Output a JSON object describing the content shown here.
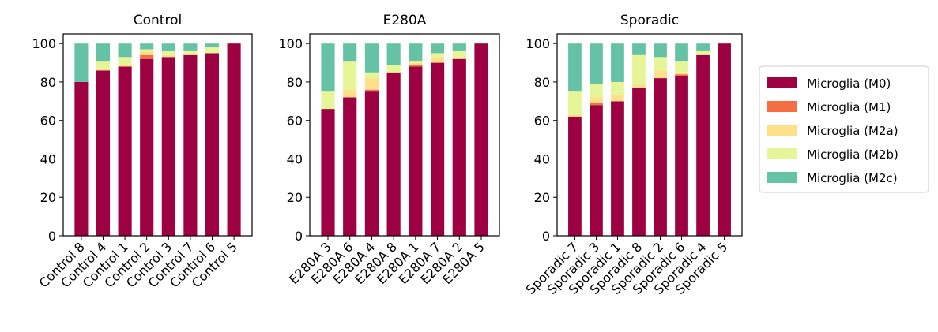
{
  "chart_data": [
    {
      "type": "bar",
      "stacked": true,
      "title": "Control",
      "ylim": [
        0,
        105
      ],
      "yticks": [
        0,
        20,
        40,
        60,
        80,
        100
      ],
      "categories": [
        "Control 8",
        "Control 4",
        "Control 1",
        "Control 2",
        "Control 3",
        "Control 7",
        "Control 6",
        "Control 5"
      ],
      "series": [
        {
          "name": "Microglia (M0)",
          "values": [
            80,
            86,
            88,
            92,
            93,
            94,
            95,
            100
          ]
        },
        {
          "name": "Microglia (M1)",
          "values": [
            0,
            0,
            0,
            2,
            0,
            0,
            0,
            0
          ]
        },
        {
          "name": "Microglia (M2a)",
          "values": [
            0,
            1,
            1,
            2,
            1,
            1,
            0,
            0
          ]
        },
        {
          "name": "Microglia (M2b)",
          "values": [
            0,
            4,
            4,
            1,
            2,
            1,
            3,
            0
          ]
        },
        {
          "name": "Microglia (M2c)",
          "values": [
            20,
            9,
            7,
            3,
            4,
            4,
            2,
            0
          ]
        }
      ]
    },
    {
      "type": "bar",
      "stacked": true,
      "title": "E280A",
      "ylim": [
        0,
        105
      ],
      "yticks": [
        0,
        20,
        40,
        60,
        80,
        100
      ],
      "categories": [
        "E280A 3",
        "E280A 6",
        "E280A 4",
        "E280A 8",
        "E280A 1",
        "E280A 7",
        "E280A 2",
        "E280A 5"
      ],
      "series": [
        {
          "name": "Microglia (M0)",
          "values": [
            66,
            72,
            75,
            85,
            88,
            90,
            92,
            100
          ]
        },
        {
          "name": "Microglia (M1)",
          "values": [
            0,
            0,
            1,
            0,
            1,
            0,
            0,
            0
          ]
        },
        {
          "name": "Microglia (M2a)",
          "values": [
            0,
            4,
            6,
            0,
            1,
            3,
            0,
            0
          ]
        },
        {
          "name": "Microglia (M2b)",
          "values": [
            9,
            15,
            3,
            4,
            1,
            2,
            4,
            0
          ]
        },
        {
          "name": "Microglia (M2c)",
          "values": [
            25,
            9,
            15,
            11,
            9,
            5,
            4,
            0
          ]
        }
      ]
    },
    {
      "type": "bar",
      "stacked": true,
      "title": "Sporadic",
      "ylim": [
        0,
        105
      ],
      "yticks": [
        0,
        20,
        40,
        60,
        80,
        100
      ],
      "categories": [
        "Sporadic 7",
        "Sporadic 3",
        "Sporadic 1",
        "Sporadic 8",
        "Sporadic 2",
        "Sporadic 6",
        "Sporadic 4",
        "Sporadic 5"
      ],
      "series": [
        {
          "name": "Microglia (M0)",
          "values": [
            62,
            68,
            70,
            77,
            82,
            83,
            94,
            100
          ]
        },
        {
          "name": "Microglia (M1)",
          "values": [
            0,
            1,
            0,
            0,
            0,
            1,
            0,
            0
          ]
        },
        {
          "name": "Microglia (M2a)",
          "values": [
            1,
            3,
            3,
            2,
            4,
            1,
            0,
            0
          ]
        },
        {
          "name": "Microglia (M2b)",
          "values": [
            12,
            7,
            7,
            15,
            7,
            6,
            2,
            0
          ]
        },
        {
          "name": "Microglia (M2c)",
          "values": [
            25,
            21,
            20,
            6,
            7,
            9,
            4,
            0
          ]
        }
      ]
    }
  ],
  "legend": {
    "placement": "right",
    "items": [
      {
        "label": "Microglia (M0)",
        "color": "#9e0142"
      },
      {
        "label": "Microglia (M1)",
        "color": "#f46d43"
      },
      {
        "label": "Microglia (M2a)",
        "color": "#fee08b"
      },
      {
        "label": "Microglia (M2b)",
        "color": "#e6f598"
      },
      {
        "label": "Microglia (M2c)",
        "color": "#66c2a5"
      }
    ]
  }
}
